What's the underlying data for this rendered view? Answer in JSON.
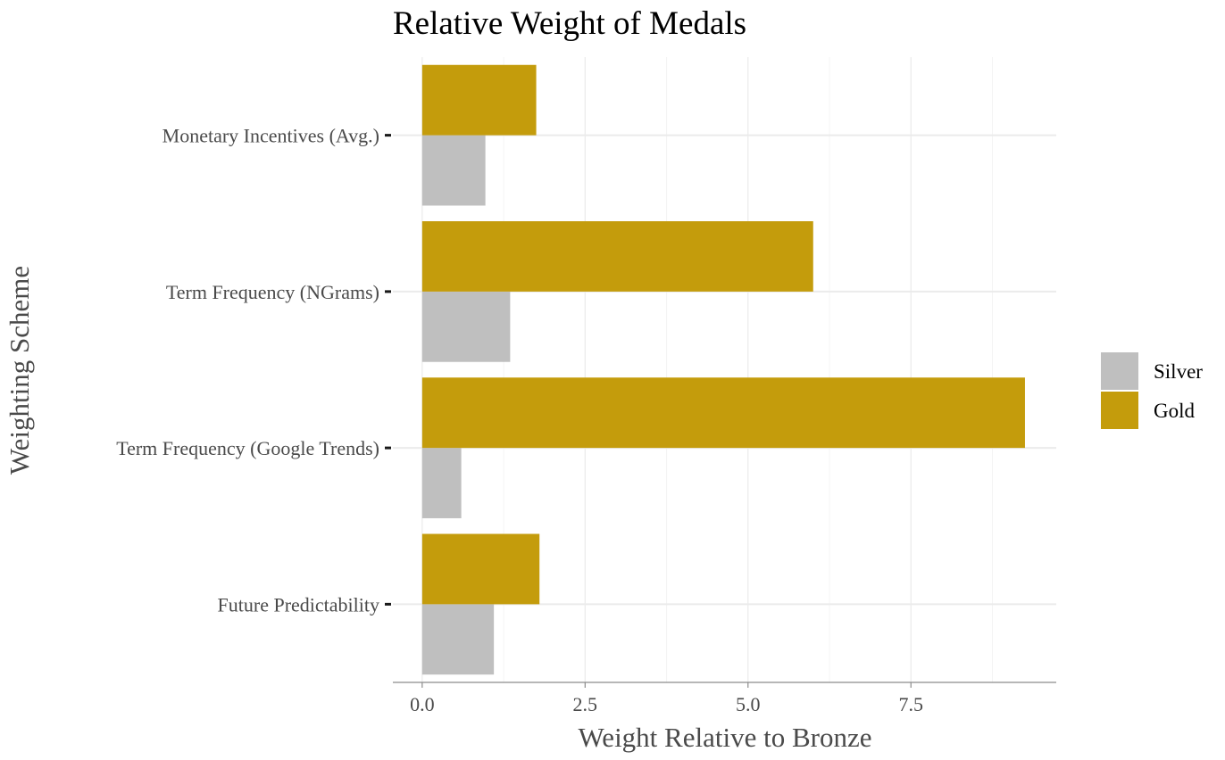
{
  "chart_data": {
    "type": "bar",
    "orientation": "horizontal",
    "title": "Relative Weight of Medals",
    "xlabel": "Weight Relative to Bronze",
    "ylabel": "Weighting Scheme",
    "categories": [
      "Future Predictability",
      "Term Frequency (Google Trends)",
      "Term Frequency (NGrams)",
      "Monetary Incentives (Avg.)"
    ],
    "series": [
      {
        "name": "Silver",
        "color": "#bfbfbf",
        "values": [
          1.1,
          0.6,
          1.35,
          0.97
        ]
      },
      {
        "name": "Gold",
        "color": "#c49c0c",
        "values": [
          1.8,
          9.25,
          6.0,
          1.75
        ]
      }
    ],
    "xlim": [
      -0.45,
      9.73
    ],
    "xticks": [
      0,
      2.5,
      5,
      7.5
    ],
    "xtick_labels": [
      "0.0",
      "2.5",
      "5.0",
      "7.5"
    ],
    "grid": true,
    "legend": {
      "position": "right",
      "entries": [
        "Silver",
        "Gold"
      ]
    }
  }
}
